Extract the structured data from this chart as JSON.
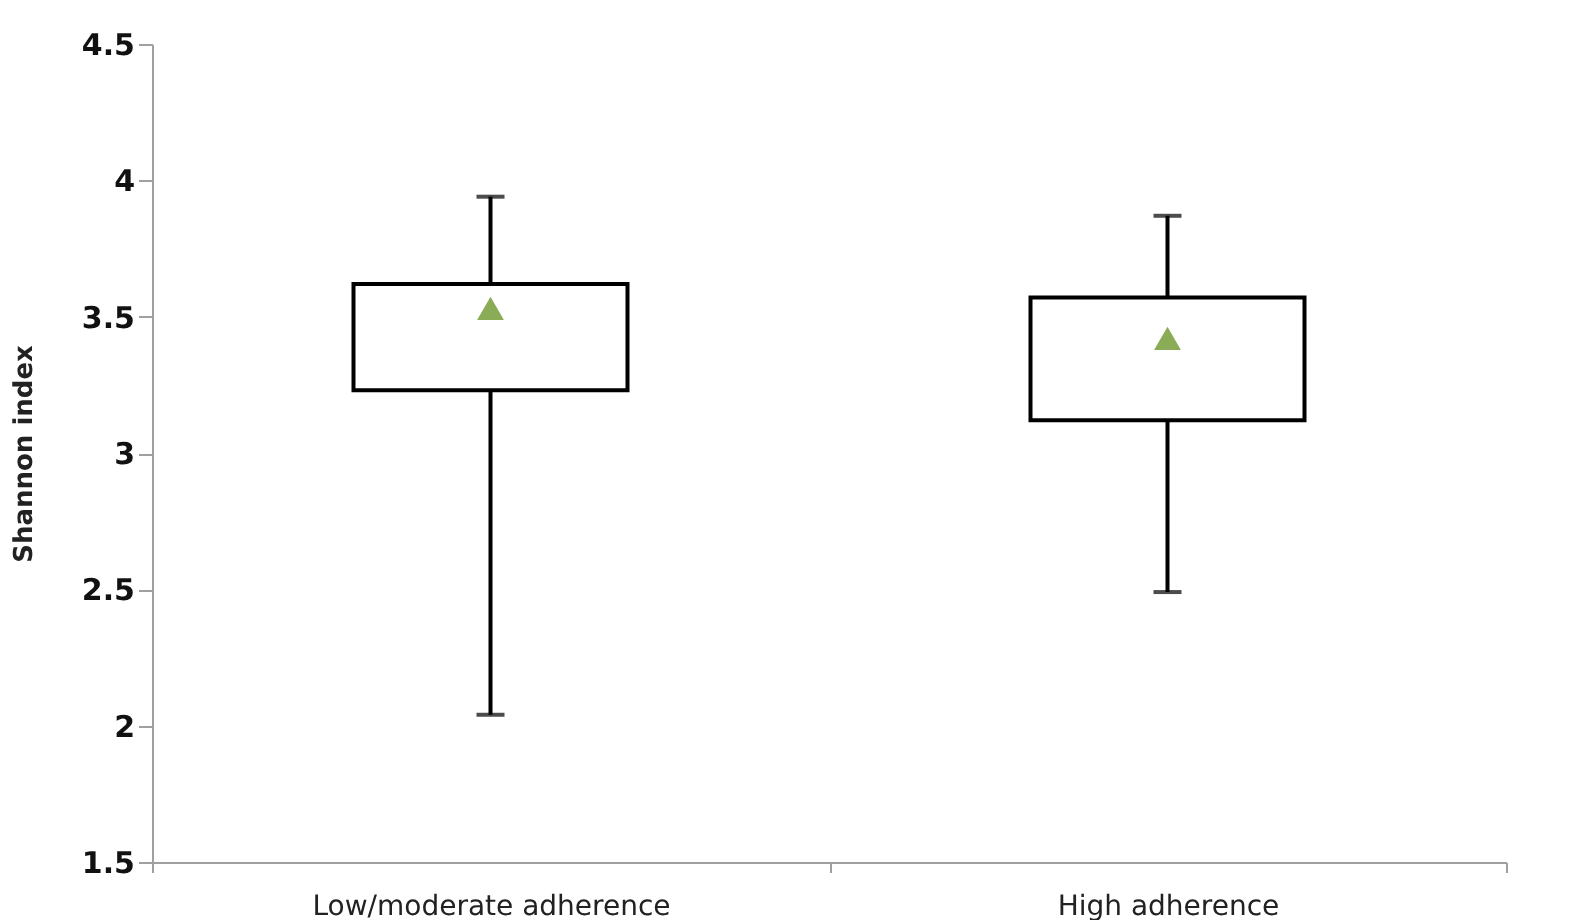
{
  "chart_data": {
    "type": "box",
    "ylabel": "Shannon index",
    "categories": [
      "Low/moderate adherence",
      "High adherence"
    ],
    "boxes": [
      {
        "low": 2.04,
        "q1": 3.23,
        "median": null,
        "q3": 3.62,
        "high": 3.94,
        "mean": 3.53
      },
      {
        "low": 2.49,
        "q1": 3.12,
        "median": null,
        "q3": 3.57,
        "high": 3.87,
        "mean": 3.42
      }
    ],
    "ylim": [
      1.5,
      4.5
    ],
    "yticks": [
      1.5,
      2,
      2.5,
      3,
      3.5,
      4,
      4.5
    ],
    "grid": false,
    "marker": "triangle"
  }
}
